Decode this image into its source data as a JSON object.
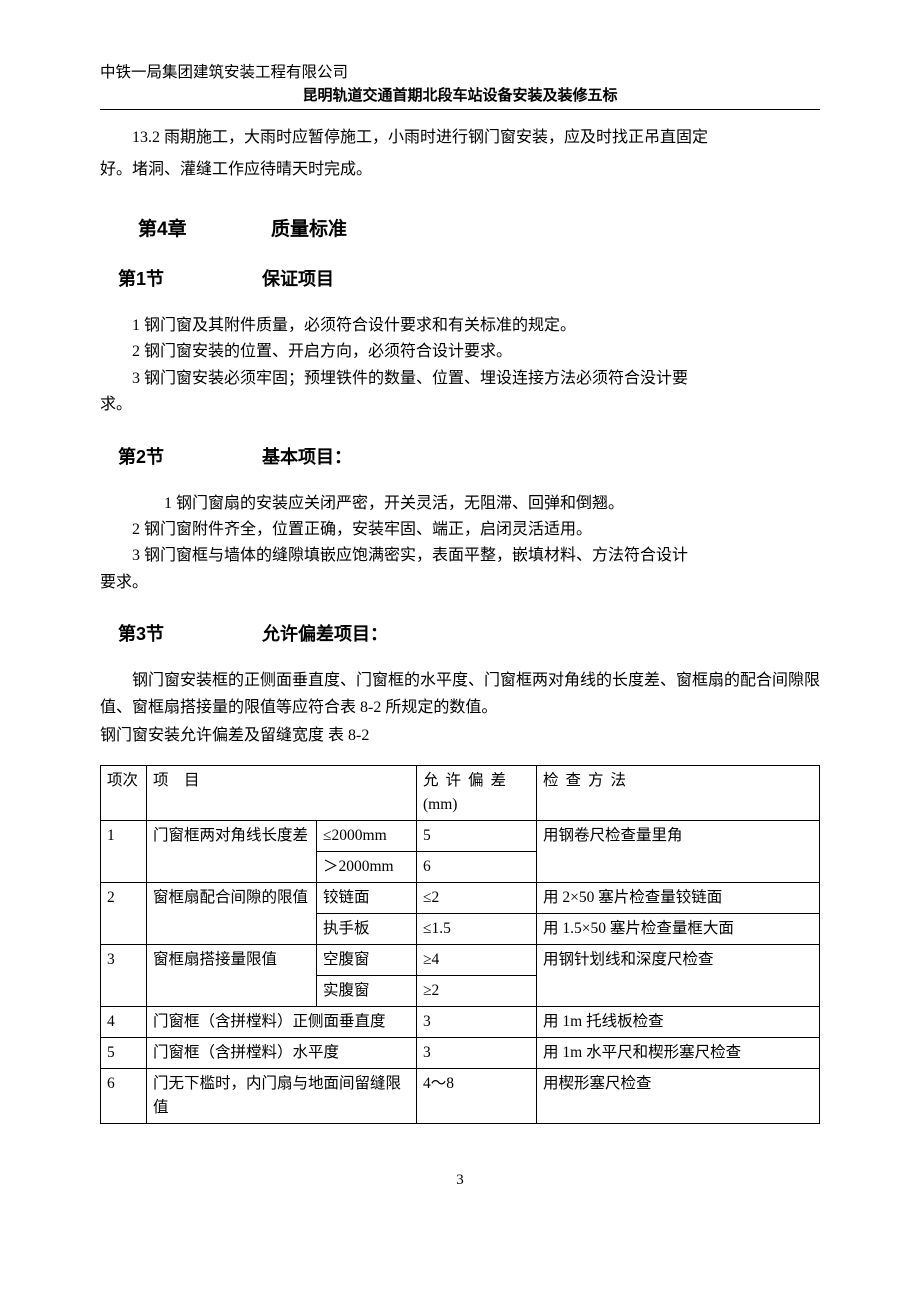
{
  "header": {
    "company": "中铁一局集团建筑安装工程有限公司",
    "project": "昆明轨道交通首期北段车站设备安装及装修五标"
  },
  "intro_para_1": "13.2 雨期施工，大雨时应暂停施工，小雨时进行钢门窗安装，应及时找正吊直固定",
  "intro_para_2": "好。堵洞、灌缝工作应待晴天时完成。",
  "chapter4": {
    "num": "第4章",
    "title": "质量标准"
  },
  "section1": {
    "num": "第1节",
    "title": "保证项目",
    "items": [
      "1 钢门窗及其附件质量，必须符合设什要求和有关标准的规定。",
      "2 钢门窗安装的位置、开启方向，必须符合设计要求。",
      "3 钢门窗安装必须牢固；预埋铁件的数量、位置、埋设连接方法必须符合没计要",
      "求。"
    ]
  },
  "section2": {
    "num": "第2节",
    "title": "基本项目：",
    "lead": "1 钢门窗扇的安装应关闭严密，开关灵活，无阻滞、回弹和倒翘。",
    "items": [
      "2 钢门窗附件齐全，位置正确，安装牢固、端正，启闭灵活适用。",
      "3 钢门窗框与墙体的缝隙填嵌应饱满密实，表面平整，嵌填材料、方法符合设计",
      "要求。"
    ]
  },
  "section3": {
    "num": "第3节",
    "title": "允许偏差项目：",
    "para1": "钢门窗安装框的正侧面垂直度、门窗框的水平度、门窗框两对角线的长度差、窗框扇的配合间隙限值、窗框扇搭接量的限值等应符合表 8-2 所规定的数值。",
    "caption": "钢门窗安装允许偏差及留缝宽度  表  8-2"
  },
  "table": {
    "head": {
      "idx": "项次",
      "item": "项　目",
      "dev": "允许偏差(mm)",
      "method": "检查方法"
    },
    "rows": [
      {
        "idx": "1",
        "item": "门窗框两对角线长度差",
        "sub": "≤2000mm",
        "dev": "5",
        "method": "用钢卷尺检查量里角"
      },
      {
        "idx": "",
        "item": "",
        "sub": "＞2000mm",
        "dev": "6",
        "method": ""
      },
      {
        "idx": "2",
        "item": "窗框扇配合间隙的限值",
        "sub": "铰链面",
        "dev": "≤2",
        "method": "用 2×50 塞片检查量铰链面"
      },
      {
        "idx": "",
        "item": "",
        "sub": "执手板",
        "dev": "≤1.5",
        "method": "用 1.5×50 塞片检查量框大面"
      },
      {
        "idx": "3",
        "item": "窗框扇搭接量限值",
        "sub": "空腹窗",
        "dev": "≥4",
        "method": "用钢针划线和深度尺检查"
      },
      {
        "idx": "",
        "item": "",
        "sub": "实腹窗",
        "dev": "≥2",
        "method": ""
      },
      {
        "idx": "4",
        "item": "门窗框（含拼樘料）正侧面垂直度",
        "sub": "",
        "dev": "3",
        "method": "用 1m 托线板检查"
      },
      {
        "idx": "5",
        "item": "门窗框（含拼樘料）水平度",
        "sub": "",
        "dev": "3",
        "method": "用 1m 水平尺和楔形塞尺检查"
      },
      {
        "idx": "6",
        "item": "门无下槛时，内门扇与地面间留缝限值",
        "sub": "",
        "dev": "4～8",
        "method": "用楔形塞尺检查"
      }
    ]
  },
  "page_number": "3"
}
